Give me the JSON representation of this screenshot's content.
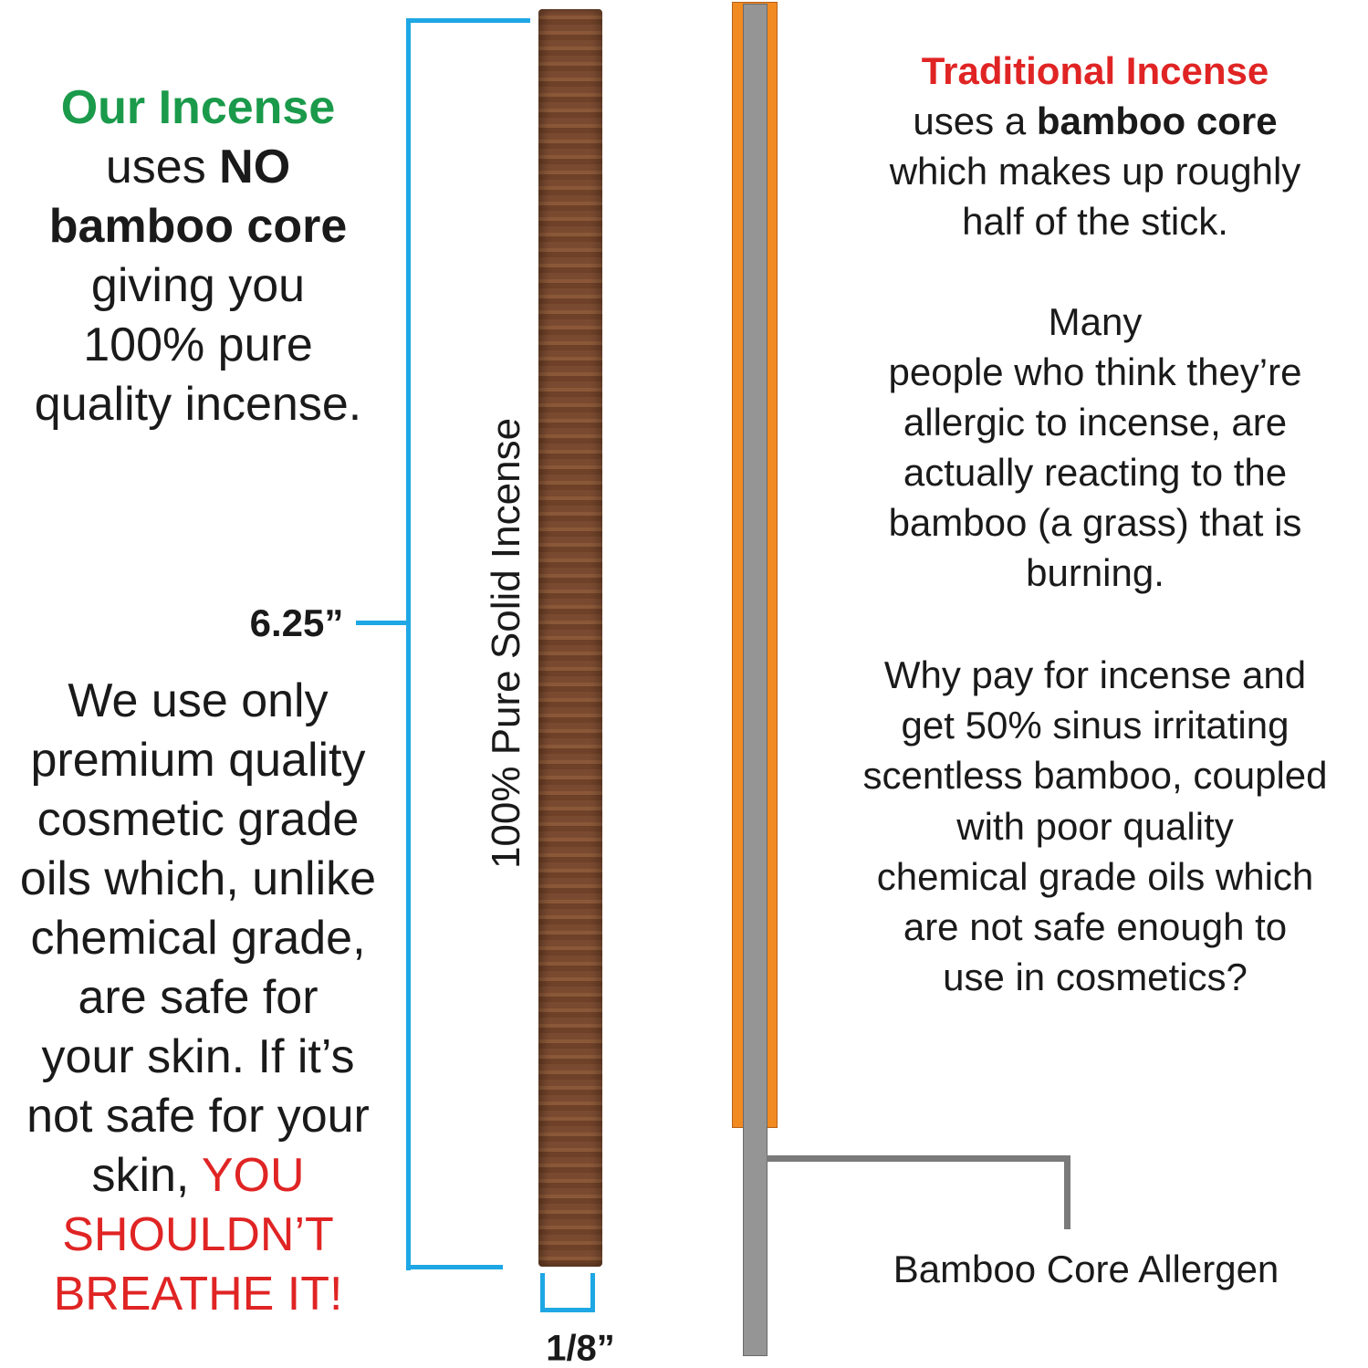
{
  "colors": {
    "green": "#1a9a4a",
    "red": "#e02424",
    "blue": "#1ea7e4",
    "orange": "#f28a22",
    "core_grey": "#959595",
    "connector_grey": "#7a7a7a",
    "stick_brown": "#7a4a30"
  },
  "left_intro": [
    [
      {
        "t": "Our Incense",
        "s": "green-bold"
      }
    ],
    [
      {
        "t": "uses "
      },
      {
        "t": "NO",
        "s": "bold"
      }
    ],
    [
      {
        "t": "bamboo core",
        "s": "bold"
      }
    ],
    [
      {
        "t": "giving you"
      }
    ],
    [
      {
        "t": "100% pure"
      }
    ],
    [
      {
        "t": "quality incense."
      }
    ]
  ],
  "length_label": "6.25”",
  "left_body": [
    [
      {
        "t": "We use only"
      }
    ],
    [
      {
        "t": "premium quality"
      }
    ],
    [
      {
        "t": "cosmetic grade"
      }
    ],
    [
      {
        "t": "oils which, unlike"
      }
    ],
    [
      {
        "t": "chemical grade,"
      }
    ],
    [
      {
        "t": "are safe for"
      }
    ],
    [
      {
        "t": "your skin. If it’s"
      }
    ],
    [
      {
        "t": "not safe for your"
      }
    ],
    [
      {
        "t": "skin, "
      },
      {
        "t": "YOU",
        "s": "red"
      }
    ],
    [
      {
        "t": "SHOULDN’T",
        "s": "red"
      }
    ],
    [
      {
        "t": "BREATHE IT!",
        "s": "red"
      }
    ]
  ],
  "stick_label": "100% Pure Solid Incense",
  "width_label": "1/8”",
  "right_block1": [
    [
      {
        "t": "Traditional Incense",
        "s": "red-bold"
      }
    ],
    [
      {
        "t": "uses a "
      },
      {
        "t": "bamboo core",
        "s": "bold"
      }
    ],
    [
      {
        "t": "which makes up roughly"
      }
    ],
    [
      {
        "t": "half of the stick."
      }
    ]
  ],
  "right_block2": [
    [
      {
        "t": "Many"
      }
    ],
    [
      {
        "t": "people who think they’re"
      }
    ],
    [
      {
        "t": "allergic to incense, are"
      }
    ],
    [
      {
        "t": "actually reacting to the"
      }
    ],
    [
      {
        "t": "bamboo (a grass) that is"
      }
    ],
    [
      {
        "t": "burning."
      }
    ]
  ],
  "right_block3": [
    [
      {
        "t": "Why pay for incense and"
      }
    ],
    [
      {
        "t": "get 50% sinus irritating"
      }
    ],
    [
      {
        "t": "scentless bamboo, coupled"
      }
    ],
    [
      {
        "t": "with poor quality"
      }
    ],
    [
      {
        "t": "chemical grade oils which"
      }
    ],
    [
      {
        "t": "are not safe enough to"
      }
    ],
    [
      {
        "t": "use in cosmetics?"
      }
    ]
  ],
  "bamboo_label": "Bamboo Core Allergen"
}
